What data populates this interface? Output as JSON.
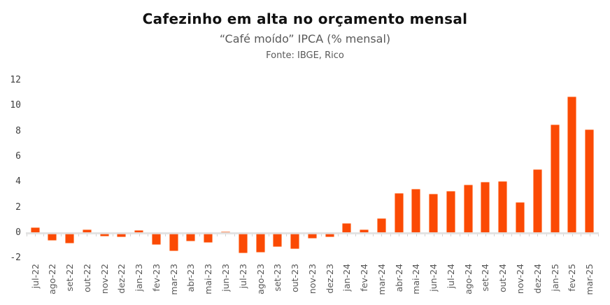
{
  "header": {
    "title": "Cafezinho em alta no orçamento mensal",
    "subtitle": "“Café moído” IPCA (% mensal)",
    "source": "Fonte: IBGE, Rico"
  },
  "colors": {
    "bar_fill": "#FB4A04",
    "bar_edge": "#FF9B6E",
    "axis_line": "#DEDEDE",
    "axis_tick": "#D4D4D4",
    "title_text": "#111111",
    "subtitle_text": "#595959",
    "ytick_text": "#404040",
    "xtick_text": "#595959"
  },
  "chart_data": {
    "type": "bar",
    "title": "Cafezinho em alta no orçamento mensal",
    "subtitle": "“Café moído” IPCA (% mensal)",
    "source": "Fonte: IBGE, Rico",
    "xlabel": "",
    "ylabel": "",
    "ylim": [
      -2,
      12
    ],
    "yticks": [
      12,
      10,
      8,
      6,
      4,
      2,
      0,
      -2
    ],
    "grid": false,
    "legend": "none",
    "categories": [
      "jul-22",
      "ago-22",
      "set-22",
      "out-22",
      "nov-22",
      "dez-22",
      "jan-23",
      "fev-23",
      "mar-23",
      "abr-23",
      "mai-23",
      "jun-23",
      "jul-23",
      "ago-23",
      "set-23",
      "out-23",
      "nov-23",
      "dez-23",
      "jan-24",
      "fev-24",
      "mar-24",
      "abr-24",
      "mai-24",
      "jun-24",
      "jul-24",
      "ago-24",
      "set-24",
      "out-24",
      "nov-24",
      "dez-24",
      "jan-25",
      "fev-25",
      "mar-25"
    ],
    "values": [
      0.45,
      -0.6,
      -0.85,
      0.3,
      -0.25,
      -0.35,
      0.25,
      -0.95,
      -1.45,
      -0.65,
      -0.75,
      0.1,
      -1.6,
      -1.55,
      -1.1,
      -1.25,
      -0.45,
      -0.3,
      0.8,
      0.3,
      1.15,
      3.15,
      3.45,
      3.1,
      3.3,
      3.8,
      4.0,
      4.05,
      2.4,
      5.0,
      8.55,
      10.75,
      8.15
    ]
  }
}
